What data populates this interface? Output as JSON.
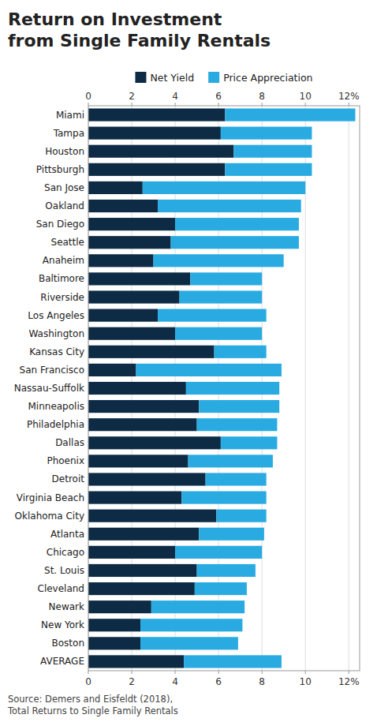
{
  "chart_data": {
    "type": "bar",
    "orientation": "horizontal",
    "stacked": true,
    "title": "Return on Investment\nfrom Single Family Rentals",
    "annotations": [
      "Source: Demers and Eisfeldt (2018),\nTotal Returns to Single Family Rentals"
    ],
    "categories": [
      "Miami",
      "Tampa",
      "Houston",
      "Pittsburgh",
      "San Jose",
      "Oakland",
      "San Diego",
      "Seattle",
      "Anaheim",
      "Baltimore",
      "Riverside",
      "Los Angeles",
      "Washington",
      "Kansas City",
      "San Francisco",
      "Nassau-Suffolk",
      "Minneapolis",
      "Philadelphia",
      "Dallas",
      "Phoenix",
      "Detroit",
      "Virginia Beach",
      "Oklahoma City",
      "Atlanta",
      "Chicago",
      "St. Louis",
      "Cleveland",
      "Newark",
      "New York",
      "Boston",
      "AVERAGE"
    ],
    "series": [
      {
        "name": "Net Yield",
        "color": "#0d2b45",
        "values": [
          6.3,
          6.1,
          6.7,
          6.3,
          2.5,
          3.2,
          4.0,
          3.8,
          3.0,
          4.7,
          4.2,
          3.2,
          4.0,
          5.8,
          2.2,
          4.5,
          5.1,
          5.0,
          6.1,
          4.6,
          5.4,
          4.3,
          5.9,
          5.1,
          4.0,
          5.0,
          4.9,
          2.9,
          2.4,
          2.4,
          4.4
        ]
      },
      {
        "name": "Price Appreciation",
        "color": "#29abe2",
        "values": [
          6.0,
          4.2,
          3.6,
          4.0,
          7.5,
          6.6,
          5.7,
          5.9,
          6.0,
          3.3,
          3.8,
          5.0,
          4.0,
          2.4,
          6.7,
          4.3,
          3.7,
          3.7,
          2.6,
          3.9,
          2.8,
          3.9,
          2.3,
          3.0,
          4.0,
          2.7,
          2.4,
          4.3,
          4.7,
          4.5,
          4.5
        ]
      }
    ],
    "xlim": [
      0,
      12.5
    ],
    "xticks": [
      0,
      2,
      4,
      6,
      8,
      10,
      {
        "value": 12,
        "label": "12%"
      }
    ],
    "grid": true,
    "legend": "top"
  }
}
